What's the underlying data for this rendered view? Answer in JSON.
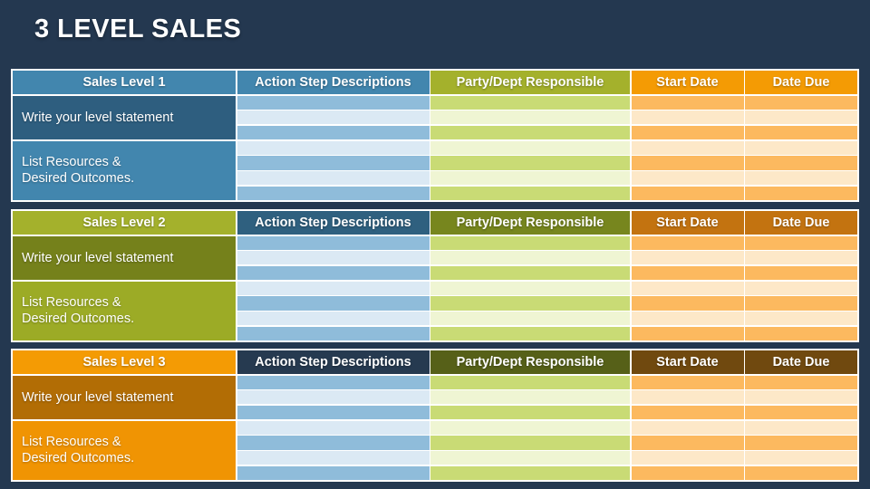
{
  "page": {
    "title": "3 LEVEL SALES"
  },
  "theme": {
    "bg": "#243850",
    "title_color": "#FFFFFF",
    "grid_line": "#FFFFFF",
    "blue_header": "#4286AE",
    "t1_write": "#2E5E7F",
    "lime_header": "#A4B12C",
    "t2_navy": "#2F607F",
    "t2_olive": "#77861E",
    "t2_orange_dark": "#C37310",
    "t2_write": "#75811B",
    "t2_list": "#9CAB26",
    "orange_header": "#F49B04",
    "t3_navy": "#263A50",
    "t3_olive": "#566018",
    "t3_brown": "#70490F",
    "t3_write": "#B26D05",
    "t3_list": "#F09403",
    "stripe_blue_a": "#8FBCDA",
    "stripe_blue_b": "#DBE9F4",
    "stripe_green_a": "#C9DB75",
    "stripe_green_b": "#EFF5D3",
    "stripe_orange_a": "#FCB95F",
    "stripe_orange_b": "#FDE8C8"
  },
  "tables": [
    {
      "title": "Sales Level 1",
      "columns": [
        "Action Step Descriptions",
        "Party/Dept Responsible",
        "Start Date",
        "Date Due"
      ],
      "row_labels": [
        "Write your level statement",
        "List Resources &\nDesired Outcomes."
      ]
    },
    {
      "title": "Sales Level 2",
      "columns": [
        "Action Step Descriptions",
        "Party/Dept Responsible",
        "Start Date",
        "Date Due"
      ],
      "row_labels": [
        "Write your level statement",
        "List Resources &\nDesired Outcomes."
      ]
    },
    {
      "title": "Sales Level 3",
      "columns": [
        "Action Step Descriptions",
        "Party/Dept Responsible",
        "Start Date",
        "Date Due"
      ],
      "row_labels": [
        "Write your level statement",
        "List Resources &\nDesired Outcomes."
      ]
    }
  ]
}
